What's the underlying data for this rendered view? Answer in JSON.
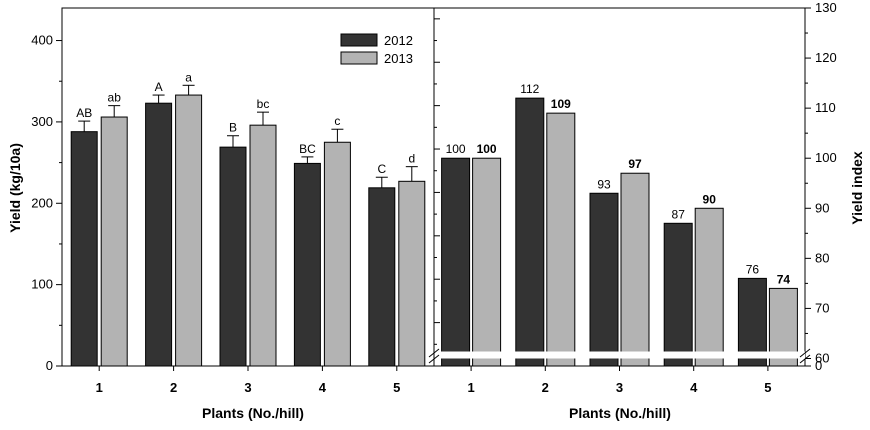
{
  "chart_data": [
    {
      "type": "bar",
      "categories": [
        "1",
        "2",
        "3",
        "4",
        "5"
      ],
      "xlabel": "Plants (No./hill)",
      "ylabel": "Yield (kg/10a)",
      "ylim": [
        0,
        440
      ],
      "yticks": [
        "0",
        "100",
        "200",
        "300",
        "400"
      ],
      "legend_position": "top-right",
      "series": [
        {
          "name": "2012",
          "color": "#333333",
          "values": [
            288,
            323,
            269,
            249,
            219
          ],
          "errors": [
            13,
            10,
            14,
            8,
            13
          ],
          "labels": [
            "AB",
            "A",
            "B",
            "BC",
            "C"
          ]
        },
        {
          "name": "2013",
          "color": "#b3b3b3",
          "values": [
            306,
            333,
            296,
            275,
            227
          ],
          "errors": [
            14,
            12,
            16,
            16,
            18
          ],
          "labels": [
            "ab",
            "a",
            "bc",
            "c",
            "d"
          ]
        }
      ]
    },
    {
      "type": "bar",
      "categories": [
        "1",
        "2",
        "3",
        "4",
        "5"
      ],
      "xlabel": "Plants (No./hill)",
      "ylabel": "Yield index",
      "ylim": [
        60,
        130
      ],
      "yticks": [
        "0",
        "60",
        "70",
        "80",
        "90",
        "100",
        "110",
        "120",
        "130"
      ],
      "axis_break": true,
      "series": [
        {
          "name": "2012",
          "color": "#333333",
          "values": [
            100,
            112,
            93,
            87,
            76
          ],
          "labels": [
            "100",
            "112",
            "93",
            "87",
            "76"
          ]
        },
        {
          "name": "2013",
          "color": "#b3b3b3",
          "values": [
            100,
            109,
            97,
            90,
            74
          ],
          "labels": [
            "100",
            "109",
            "97",
            "90",
            "74"
          ]
        }
      ]
    }
  ]
}
